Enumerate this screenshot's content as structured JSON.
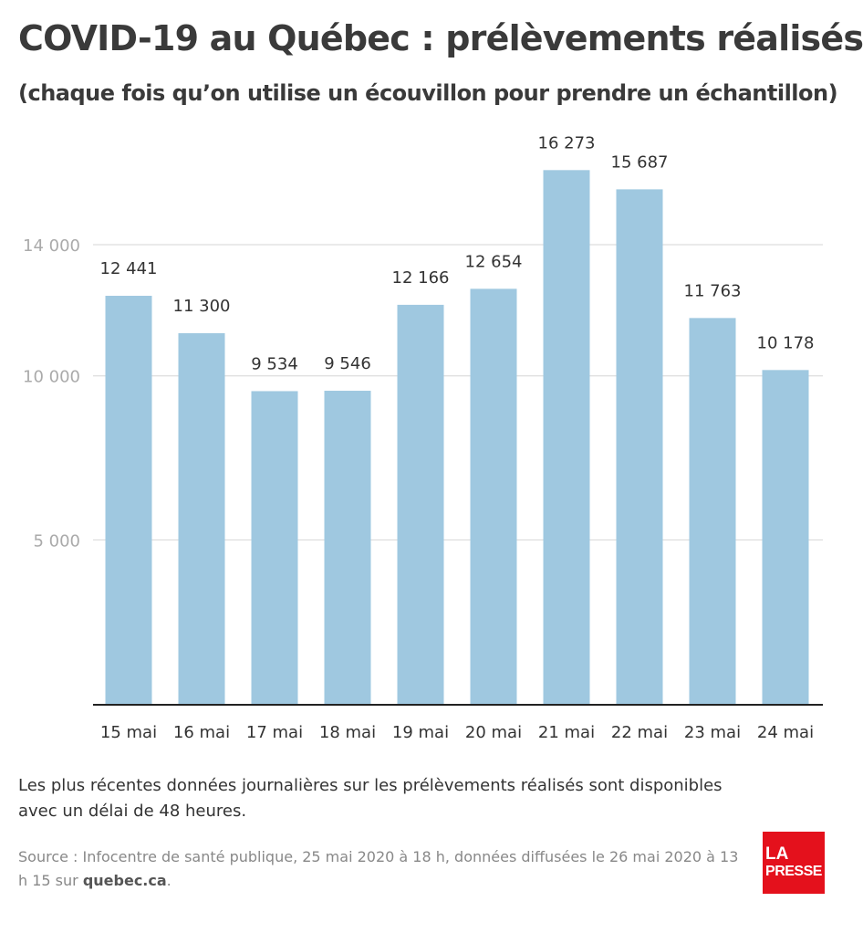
{
  "colors": {
    "bar": "#9fc8e0",
    "title": "#3a3a3a",
    "axis": "#222222",
    "grid": "#d6d6d6",
    "tick_label": "#aaaaaa",
    "source": "#888888",
    "logo_bg": "#e4111c"
  },
  "header": {
    "title": "COVID-19 au Québec : prélèvements réalisés",
    "subtitle": "(chaque fois qu’on utilise un écouvillon pour prendre un échantillon)"
  },
  "chart_data": {
    "type": "bar",
    "categories": [
      "15 mai",
      "16 mai",
      "17 mai",
      "18 mai",
      "19 mai",
      "20 mai",
      "21 mai",
      "22 mai",
      "23 mai",
      "24 mai"
    ],
    "values": [
      12441,
      11300,
      9534,
      9546,
      12166,
      12654,
      16273,
      15687,
      11763,
      10178
    ],
    "value_labels": [
      "12 441",
      "11 300",
      "9 534",
      "9 546",
      "12 166",
      "12 654",
      "16 273",
      "15 687",
      "11 763",
      "10 178"
    ],
    "yticks": [
      5000,
      10000,
      14000
    ],
    "ytick_labels": [
      "5 000",
      "10 000",
      "14 000"
    ],
    "ylim": [
      0,
      17500
    ],
    "grid": true,
    "title": "COVID-19 au Québec : prélèvements réalisés",
    "xlabel": "",
    "ylabel": ""
  },
  "footer": {
    "note": "Les plus récentes données journalières sur les prélèvements réalisés sont disponibles avec un délai de 48 heures.",
    "source_prefix": "Source : Infocentre de santé publique, 25 mai 2020 à 18 h, données diffusées le 26 mai 2020 à 13 h 15 sur ",
    "source_site": "quebec.ca",
    "source_suffix": ".",
    "logo_line1": "LA",
    "logo_line2": "PRESSE"
  }
}
